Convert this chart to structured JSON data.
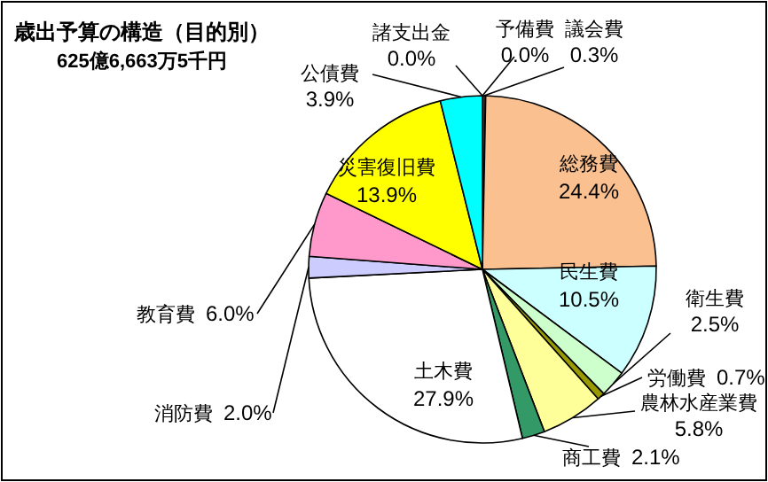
{
  "chart_data": {
    "type": "pie",
    "title": "歳出予算の構造（目的別）",
    "subtitle": "625億6,663万5千円",
    "categories": [
      "議会費",
      "総務費",
      "民生費",
      "衛生費",
      "労働費",
      "農林水産業費",
      "商工費",
      "土木費",
      "消防費",
      "教育費",
      "災害復旧費",
      "公債費",
      "諸支出金",
      "予備費"
    ],
    "values": [
      0.3,
      24.4,
      10.5,
      2.5,
      0.7,
      5.8,
      2.1,
      27.9,
      2.0,
      6.0,
      13.9,
      3.9,
      0.0,
      0.0
    ],
    "colors": [
      "#333333",
      "#fac090",
      "#ccffff",
      "#ccffcc",
      "#999900",
      "#ffff99",
      "#339966",
      "#ffffff",
      "#ccccff",
      "#ff99cc",
      "#ffff00",
      "#00ffff",
      "#ffffff",
      "#ffffff"
    ],
    "value_labels": [
      "0.3%",
      "24.4%",
      "10.5%",
      "2.5%",
      "0.7%",
      "5.8%",
      "2.1%",
      "27.9%",
      "2.0%",
      "6.0%",
      "13.9%",
      "3.9%",
      "0.0%",
      "0.0%"
    ]
  }
}
